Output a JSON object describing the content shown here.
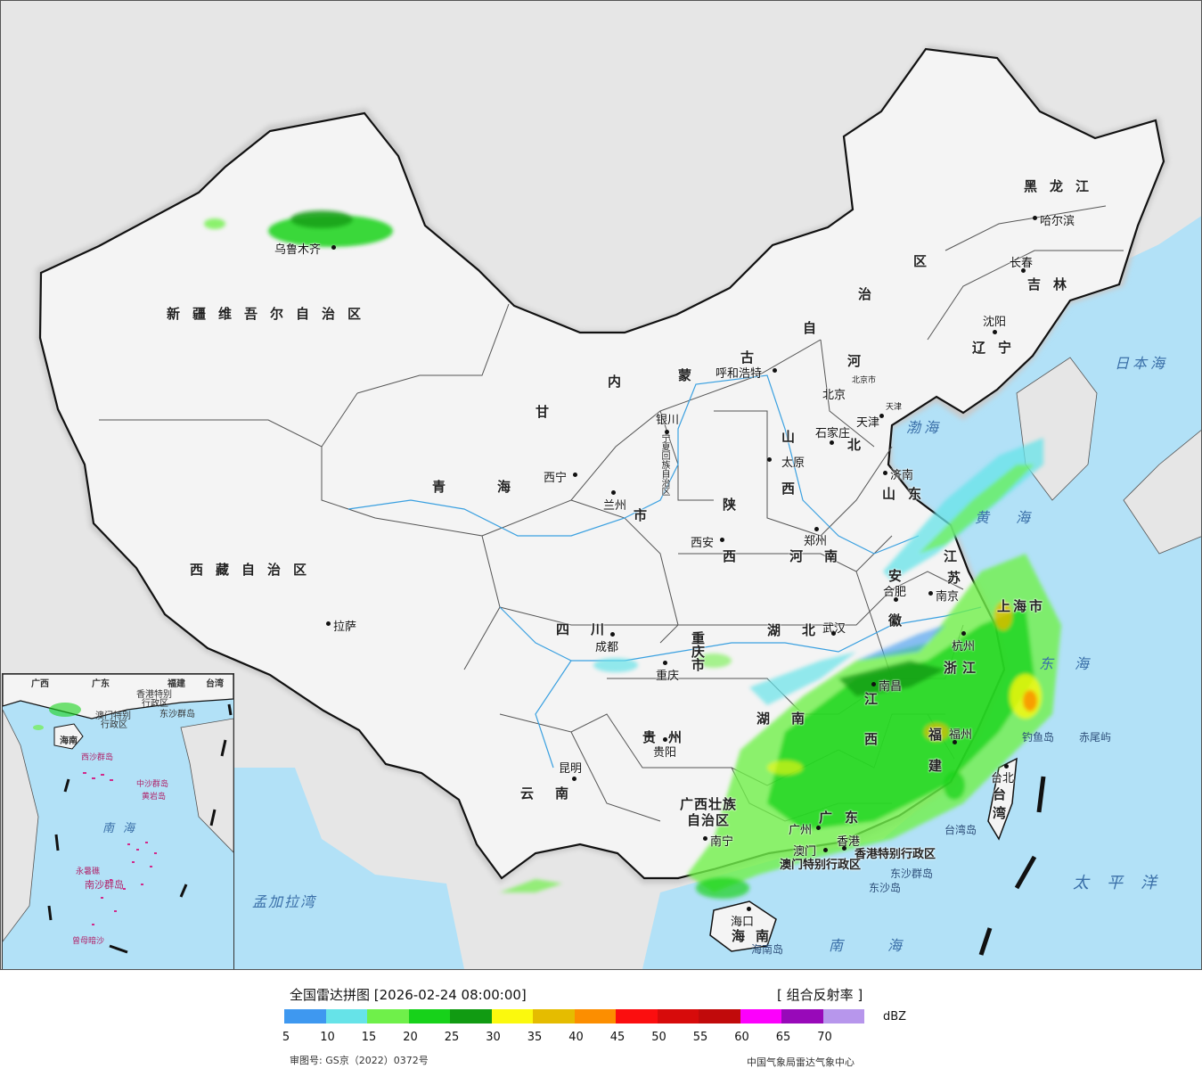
{
  "legend": {
    "title": "全国雷达拼图 [2026-02-24 08:00:00]",
    "product": "[ 组合反射率 ]",
    "unit": "dBZ",
    "scale_colors": [
      "#3e98f0",
      "#66e3e8",
      "#6ff04a",
      "#17d21a",
      "#119b12",
      "#fbf90d",
      "#e5bc00",
      "#fc8e00",
      "#fb0e0f",
      "#d70b0b",
      "#c10a0b",
      "#fc00fc",
      "#9809b9",
      "#b796ec"
    ],
    "ticks": [
      "5",
      "10",
      "15",
      "20",
      "25",
      "30",
      "35",
      "40",
      "45",
      "50",
      "55",
      "60",
      "65",
      "70"
    ],
    "approval_number": "审图号: GS京（2022）0372号",
    "producer": "中国气象局雷达气象中心"
  },
  "provinces": {
    "xinjiang": "新疆维吾尔自治区",
    "tibet": "西藏自治区",
    "qinghai_1": "青",
    "qinghai_2": "海",
    "gansu": "甘",
    "neimenggu_1": "内",
    "neimenggu_2": "蒙",
    "neimenggu_3": "古",
    "neimenggu_4": "自",
    "neimenggu_5": "治",
    "neimenggu_6": "区",
    "heilongjiang": "黑龙江",
    "jilin": "吉林",
    "liaoning": "辽宁",
    "hebei_1": "河",
    "hebei_2": "北",
    "shanxi_1": "山",
    "shanxi_2": "西",
    "shandong": "山东",
    "henan": "河南",
    "shaanxi_1": "陕",
    "shaanxi_2": "西",
    "ningxia": "宁夏回族自治区",
    "sichuan": "四川",
    "chongqing": "重庆市",
    "hubei": "湖北",
    "hunan": "湖南",
    "jiangxi": "江西",
    "anhui_1": "安",
    "anhui_2": "徽",
    "jiangsu_1": "江",
    "jiangsu_2": "苏",
    "zhejiang": "浙江",
    "fujian": "福建",
    "guizhou": "贵州",
    "yunnan": "云南",
    "guangxi_1": "广西壮族",
    "guangxi_2": "自治区",
    "guangdong": "广东",
    "hainan": "海南",
    "taiwan_1": "台",
    "taiwan_2": "湾",
    "shanghai": "上海市",
    "gansu_city": "市",
    "hk": "香港特别行政区",
    "macao": "澳门特别行政区"
  },
  "cities": {
    "urumqi": "乌鲁木齐",
    "lhasa": "拉萨",
    "xining": "西宁",
    "lanzhou": "兰州",
    "yinchuan": "银川",
    "hohhot": "呼和浩特",
    "beijing": "北京",
    "beijing_small": "北京市",
    "tianjin": "天津",
    "tianjin_small": "天津",
    "shijiazhuang": "石家庄",
    "taiyuan": "太原",
    "jinan": "济南",
    "zhengzhou": "郑州",
    "xian": "西安",
    "harbin": "哈尔滨",
    "changchun": "长春",
    "shenyang": "沈阳",
    "chengdu": "成都",
    "chongqing": "重庆",
    "wuhan": "武汉",
    "hefei": "合肥",
    "nanjing": "南京",
    "hangzhou": "杭州",
    "nanchang": "南昌",
    "fuzhou": "福州",
    "guiyang": "贵阳",
    "kunming": "昆明",
    "nanning": "南宁",
    "guangzhou": "广州",
    "macao": "澳门",
    "hongkong": "香港",
    "haikou": "海口",
    "taipei": "台北"
  },
  "seas": {
    "japan_sea": "日本海",
    "bohai": "渤海",
    "yellow_sea": "黄海",
    "east_sea": "东海",
    "pacific": "太平洋",
    "south_sea": "南海",
    "bengal": "孟加拉湾"
  },
  "islands": {
    "diaoyu": "钓鱼岛",
    "chiwei": "赤尾屿",
    "taiwan_island": "台湾岛",
    "dongsha_islands": "东沙群岛",
    "dongsha_island": "东沙岛",
    "hainan_island": "海南岛"
  },
  "inset": {
    "guangdong": "广东",
    "guangxi": "广西",
    "fujian": "福建",
    "taiwan": "台湾",
    "hk": "香港特别",
    "hk2": "行政区",
    "macao": "澳门特别",
    "macao2": "行政区",
    "hainan": "海南",
    "dongsha": "东沙群岛",
    "xisha": "西沙群岛",
    "zhongsha": "中沙群岛",
    "huangyan": "黄岩岛",
    "sea": "南海",
    "nansha": "南沙群岛",
    "yongshu": "永暑礁",
    "zengmu": "曾母暗沙"
  }
}
